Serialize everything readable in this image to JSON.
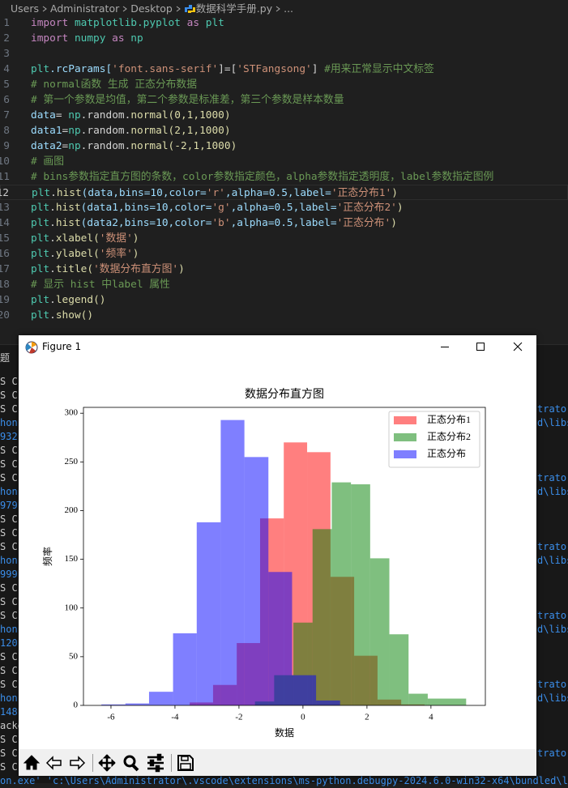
{
  "breadcrumb": [
    "Users",
    "Administrator",
    "Desktop",
    "数据科学手册.py",
    "..."
  ],
  "code": {
    "lines": [
      {
        "n": 1,
        "segs": [
          [
            "import ",
            "#c586c0"
          ],
          [
            "matplotlib.pyplot ",
            "#4ec9b0"
          ],
          [
            "as ",
            "#c586c0"
          ],
          [
            "plt",
            "#4ec9b0"
          ]
        ]
      },
      {
        "n": 2,
        "segs": [
          [
            "import ",
            "#c586c0"
          ],
          [
            "numpy ",
            "#4ec9b0"
          ],
          [
            "as ",
            "#c586c0"
          ],
          [
            "np",
            "#4ec9b0"
          ]
        ]
      },
      {
        "n": 3,
        "segs": []
      },
      {
        "n": 4,
        "segs": [
          [
            "plt",
            "#4ec9b0"
          ],
          [
            ".rcParams[",
            "#9cdcfe"
          ],
          [
            "'font.sans-serif'",
            "#ce9178"
          ],
          [
            "]=[",
            "#d4d4d4"
          ],
          [
            "'STFangsong'",
            "#ce9178"
          ],
          [
            "] ",
            "#d4d4d4"
          ],
          [
            "#用来正常显示中文标签",
            "#6a9955"
          ]
        ]
      },
      {
        "n": 5,
        "segs": [
          [
            "# normal函数 生成 正态分布数据",
            "#6a9955"
          ]
        ]
      },
      {
        "n": 6,
        "segs": [
          [
            "# 第一个参数是均值，第二个参数是标准差，第三个参数是样本数量",
            "#6a9955"
          ]
        ]
      },
      {
        "n": 7,
        "segs": [
          [
            "data",
            "#9cdcfe"
          ],
          [
            "= ",
            "#d4d4d4"
          ],
          [
            "np",
            "#4ec9b0"
          ],
          [
            ".random.",
            "#d4d4d4"
          ],
          [
            "normal",
            "#dcdcaa"
          ],
          [
            "(0,1,1000)",
            "#dcdcaa"
          ]
        ]
      },
      {
        "n": 8,
        "segs": [
          [
            "data1",
            "#9cdcfe"
          ],
          [
            "=",
            "#d4d4d4"
          ],
          [
            "np",
            "#4ec9b0"
          ],
          [
            ".random.",
            "#d4d4d4"
          ],
          [
            "normal",
            "#dcdcaa"
          ],
          [
            "(2,1,1000)",
            "#dcdcaa"
          ]
        ]
      },
      {
        "n": 9,
        "segs": [
          [
            "data2",
            "#9cdcfe"
          ],
          [
            "=",
            "#d4d4d4"
          ],
          [
            "np",
            "#4ec9b0"
          ],
          [
            ".random.",
            "#d4d4d4"
          ],
          [
            "normal",
            "#dcdcaa"
          ],
          [
            "(-2,1,1000)",
            "#dcdcaa"
          ]
        ]
      },
      {
        "n": 10,
        "segs": [
          [
            "# 画图",
            "#6a9955"
          ]
        ]
      },
      {
        "n": 11,
        "segs": [
          [
            "# bins参数指定直方图的条数，color参数指定颜色，alpha参数指定透明度，label参数指定图例",
            "#6a9955"
          ]
        ]
      },
      {
        "n": 12,
        "active": true,
        "segs": [
          [
            "plt",
            "#4ec9b0"
          ],
          [
            ".",
            "#d4d4d4"
          ],
          [
            "hist",
            "#dcdcaa"
          ],
          [
            "(data,bins=10,color=",
            "#9cdcfe"
          ],
          [
            "'r'",
            "#ce9178"
          ],
          [
            ",alpha=0.5,label=",
            "#9cdcfe"
          ],
          [
            "'正态分布1'",
            "#ce9178"
          ],
          [
            ")",
            "#dcdcaa"
          ]
        ]
      },
      {
        "n": 13,
        "segs": [
          [
            "plt",
            "#4ec9b0"
          ],
          [
            ".",
            "#d4d4d4"
          ],
          [
            "hist",
            "#dcdcaa"
          ],
          [
            "(data1,bins=10,color=",
            "#9cdcfe"
          ],
          [
            "'g'",
            "#ce9178"
          ],
          [
            ",alpha=0.5,label=",
            "#9cdcfe"
          ],
          [
            "'正态分布2'",
            "#ce9178"
          ],
          [
            ")",
            "#dcdcaa"
          ]
        ]
      },
      {
        "n": 14,
        "segs": [
          [
            "plt",
            "#4ec9b0"
          ],
          [
            ".",
            "#d4d4d4"
          ],
          [
            "hist",
            "#dcdcaa"
          ],
          [
            "(data2,bins=10,color=",
            "#9cdcfe"
          ],
          [
            "'b'",
            "#ce9178"
          ],
          [
            ",alpha=0.5,label=",
            "#9cdcfe"
          ],
          [
            "'正态分布'",
            "#ce9178"
          ],
          [
            ")",
            "#dcdcaa"
          ]
        ]
      },
      {
        "n": 15,
        "segs": [
          [
            "plt",
            "#4ec9b0"
          ],
          [
            ".",
            "#d4d4d4"
          ],
          [
            "xlabel(",
            "#dcdcaa"
          ],
          [
            "'数据'",
            "#ce9178"
          ],
          [
            ")",
            "#dcdcaa"
          ]
        ]
      },
      {
        "n": 16,
        "segs": [
          [
            "plt",
            "#4ec9b0"
          ],
          [
            ".",
            "#d4d4d4"
          ],
          [
            "ylabel(",
            "#dcdcaa"
          ],
          [
            "'频率'",
            "#ce9178"
          ],
          [
            ")",
            "#dcdcaa"
          ]
        ]
      },
      {
        "n": 17,
        "segs": [
          [
            "plt",
            "#4ec9b0"
          ],
          [
            ".",
            "#d4d4d4"
          ],
          [
            "title(",
            "#dcdcaa"
          ],
          [
            "'数据分布直方图'",
            "#ce9178"
          ],
          [
            ")",
            "#dcdcaa"
          ]
        ]
      },
      {
        "n": 18,
        "segs": [
          [
            "# 显示 hist 中label 属性",
            "#6a9955"
          ]
        ]
      },
      {
        "n": 19,
        "segs": [
          [
            "plt",
            "#4ec9b0"
          ],
          [
            ".",
            "#d4d4d4"
          ],
          [
            "legend()",
            "#dcdcaa"
          ]
        ]
      },
      {
        "n": 20,
        "segs": [
          [
            "plt",
            "#4ec9b0"
          ],
          [
            ".",
            "#d4d4d4"
          ],
          [
            "show()",
            "#dcdcaa"
          ]
        ]
      }
    ]
  },
  "panel_tab": "题",
  "terminal": [
    {
      "left": "S C:"
    },
    {
      "left": "S C:"
    },
    {
      "left": "S C:",
      "right": "trator"
    },
    {
      "left": "hon.",
      "color": "#3b8eea",
      "right": "d\\libs"
    },
    {
      "left": "932'",
      "color": "#3b8eea"
    },
    {
      "left": "S C:"
    },
    {
      "left": "S C:"
    },
    {
      "left": "S C:",
      "right": "trator"
    },
    {
      "left": "hon.",
      "color": "#3b8eea",
      "right": "d\\libs"
    },
    {
      "left": "979'",
      "color": "#3b8eea"
    },
    {
      "left": "S C:"
    },
    {
      "left": "S C:"
    },
    {
      "left": "S C:",
      "right": "trator"
    },
    {
      "left": "hon.",
      "color": "#3b8eea",
      "right": "d\\libs"
    },
    {
      "left": "999'",
      "color": "#3b8eea"
    },
    {
      "left": "S C:"
    },
    {
      "left": "S C:"
    },
    {
      "left": "S C:",
      "right": "trator"
    },
    {
      "left": "hon.",
      "color": "#3b8eea",
      "right": "d\\libs"
    },
    {
      "left": "120'",
      "color": "#3b8eea"
    },
    {
      "left": "S C:"
    },
    {
      "left": "S C:"
    },
    {
      "left": "S C:",
      "right": "trator"
    },
    {
      "left": "hon.",
      "color": "#3b8eea",
      "right": "d\\libs"
    },
    {
      "left": "148'",
      "color": "#3b8eea"
    },
    {
      "left": "acke"
    },
    {
      "left": "S C:"
    },
    {
      "left": "S C:",
      "right": "trator"
    },
    {
      "left": "S C:"
    },
    {
      "left": "on.exe' 'c:\\Users\\Administrator\\.vscode\\extensions\\ms-python.debugpy-2024.6.0-win32-x64\\bundled\\libs",
      "color": "#3b8eea"
    }
  ],
  "window_title": "Figure 1",
  "chart_data": {
    "type": "hist",
    "title": "数据分布直方图",
    "xlabel": "数据",
    "ylabel": "频率",
    "series": [
      {
        "name": "正态分布1",
        "color": "#ff0000",
        "alpha": 0.5,
        "bins": [
          -3.54,
          -2.81,
          -2.07,
          -1.34,
          -0.6,
          0.13,
          0.86,
          1.6,
          2.33,
          3.07,
          3.8
        ],
        "values": [
          3,
          21,
          64,
          192,
          270,
          260,
          132,
          51,
          6,
          1
        ]
      },
      {
        "name": "正态分布2",
        "color": "#008000",
        "alpha": 0.5,
        "bins": [
          -1.5,
          -0.9,
          -0.3,
          0.3,
          0.9,
          1.5,
          2.1,
          2.7,
          3.3,
          3.9,
          5.1
        ],
        "values": [
          4,
          31,
          85,
          181,
          229,
          227,
          151,
          73,
          12,
          7
        ]
      },
      {
        "name": "正态分布",
        "color": "#0000ff",
        "alpha": 0.5,
        "bins": [
          -6.3,
          -5.55,
          -4.81,
          -4.06,
          -3.32,
          -2.57,
          -1.83,
          -1.08,
          -0.34,
          0.41,
          1.16
        ],
        "values": [
          1,
          2,
          14,
          74,
          188,
          293,
          255,
          137,
          31,
          5
        ]
      }
    ],
    "xlim": [
      -6.86,
      5.7
    ],
    "xticks": [
      -6,
      -4,
      -2,
      0,
      2,
      4
    ],
    "ylim": [
      0,
      306
    ],
    "yticks": [
      0,
      50,
      100,
      150,
      200,
      250,
      300
    ],
    "legend": "upper right"
  }
}
